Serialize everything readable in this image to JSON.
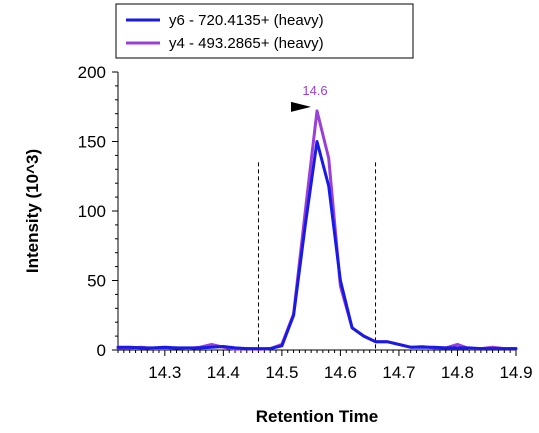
{
  "chart_data": {
    "type": "line",
    "xlabel": "Retention Time",
    "ylabel": "Intensity (10^3)",
    "xlim": [
      14.22,
      14.9
    ],
    "ylim": [
      0,
      200
    ],
    "x_ticks": [
      "14.3",
      "14.4",
      "14.5",
      "14.6",
      "14.7",
      "14.8",
      "14.9"
    ],
    "y_ticks": [
      "0",
      "50",
      "100",
      "150",
      "200"
    ],
    "legend_position": "top",
    "peak_boundaries": [
      14.46,
      14.66
    ],
    "peak_label": {
      "text": "14.6",
      "x": 14.56,
      "y": 172,
      "color": "#9a40d8"
    },
    "series": [
      {
        "name": "y4 - 493.2865+ (heavy)",
        "color": "#9a40d8",
        "x": [
          14.22,
          14.24,
          14.26,
          14.28,
          14.3,
          14.32,
          14.34,
          14.36,
          14.38,
          14.4,
          14.42,
          14.44,
          14.46,
          14.48,
          14.5,
          14.52,
          14.54,
          14.56,
          14.58,
          14.6,
          14.62,
          14.64,
          14.66,
          14.68,
          14.7,
          14.72,
          14.74,
          14.76,
          14.78,
          14.8,
          14.82,
          14.84,
          14.86,
          14.88,
          14.9
        ],
        "y": [
          1.5,
          1.5,
          2,
          1,
          1,
          1.5,
          1,
          2,
          4,
          2,
          0.5,
          1,
          0.5,
          1,
          4,
          26,
          100,
          172,
          138,
          46,
          16,
          10,
          6,
          6,
          4,
          2,
          2.5,
          1.5,
          1.5,
          4,
          1,
          1,
          2,
          1,
          1
        ]
      },
      {
        "name": "y6 - 720.4135+ (heavy)",
        "color": "#1a1ae6",
        "x": [
          14.22,
          14.24,
          14.26,
          14.28,
          14.3,
          14.32,
          14.34,
          14.36,
          14.38,
          14.4,
          14.42,
          14.44,
          14.46,
          14.48,
          14.5,
          14.52,
          14.54,
          14.56,
          14.58,
          14.6,
          14.62,
          14.64,
          14.66,
          14.68,
          14.7,
          14.72,
          14.74,
          14.76,
          14.78,
          14.8,
          14.82,
          14.84,
          14.86,
          14.88,
          14.9
        ],
        "y": [
          2,
          2,
          1.5,
          1.5,
          2,
          1.5,
          1.5,
          1.5,
          2,
          2.5,
          1.5,
          1,
          1,
          1,
          3,
          25,
          90,
          150,
          118,
          50,
          16,
          10,
          6,
          6,
          4,
          2,
          2,
          2,
          1.5,
          1.5,
          1.5,
          1,
          1,
          1,
          1
        ]
      }
    ]
  },
  "legend": {
    "items": [
      {
        "name": "y6 - 720.4135+ (heavy)",
        "color": "#1a1ae6"
      },
      {
        "name": "y4 - 493.2865+ (heavy)",
        "color": "#9a40d8"
      }
    ]
  }
}
